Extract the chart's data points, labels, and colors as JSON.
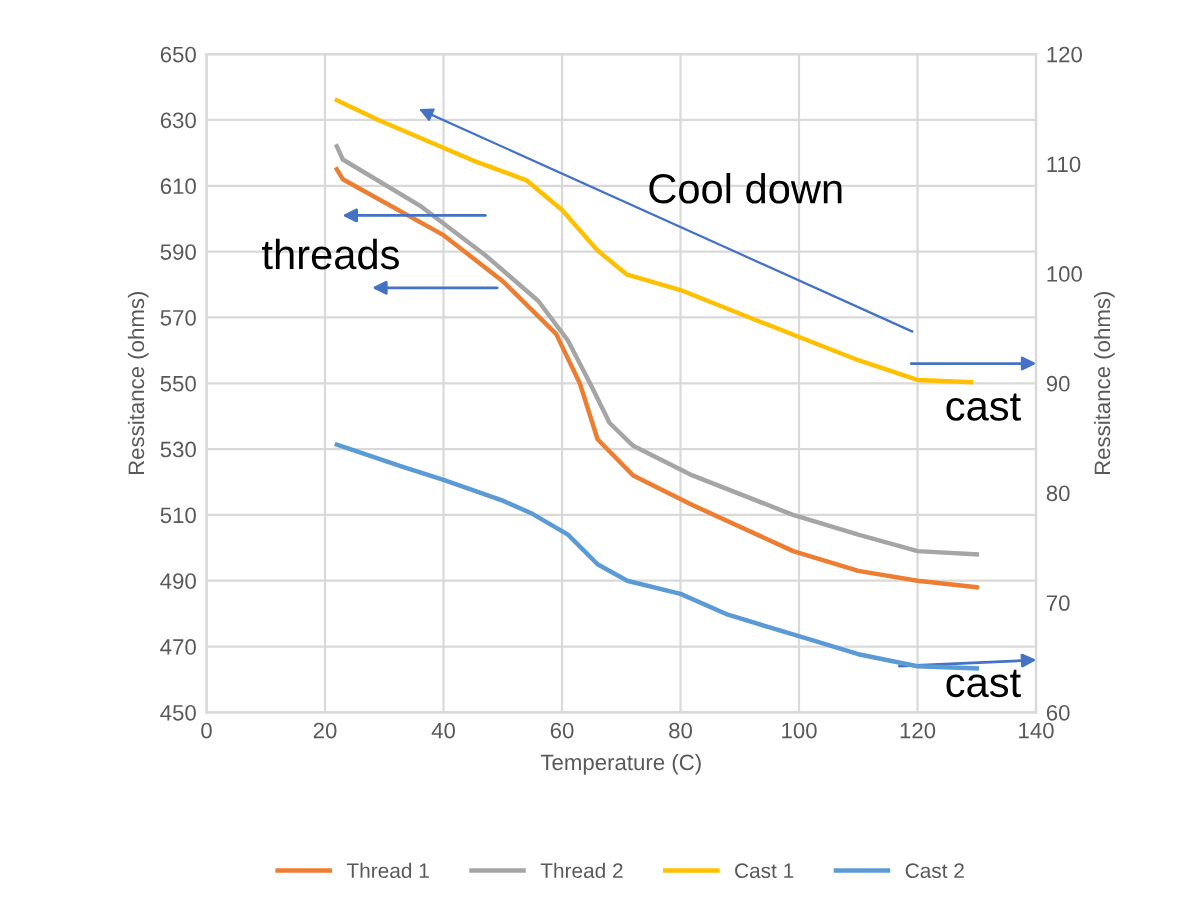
{
  "chart_data": {
    "type": "line",
    "xlabel": "Temperature (C)",
    "ylabel": "Ressitance (ohms)",
    "y2label": "Ressitance (ohms)",
    "xlim": [
      0,
      140
    ],
    "xticks": [
      0,
      20,
      40,
      60,
      80,
      100,
      120,
      140
    ],
    "ylim": [
      450,
      650
    ],
    "yticks": [
      450,
      470,
      490,
      510,
      530,
      550,
      570,
      590,
      610,
      630,
      650
    ],
    "y2lim": [
      60,
      120
    ],
    "y2ticks": [
      60,
      70,
      80,
      90,
      100,
      110,
      120
    ],
    "grid": true,
    "legend": "bottom",
    "marker": "none",
    "line_style": "solid",
    "series": [
      {
        "name": "Thread 1",
        "color": "#ed7d31",
        "x": [
          22,
          23,
          40,
          50,
          59,
          63,
          66,
          72,
          82,
          99,
          110,
          120,
          130
        ],
        "values": [
          615,
          612,
          595,
          581,
          565,
          550,
          533,
          522,
          513,
          499,
          493,
          490,
          488
        ]
      },
      {
        "name": "Thread 2",
        "color": "#a5a5a5",
        "x": [
          22,
          23,
          36,
          47,
          56,
          61,
          65,
          68,
          72,
          82,
          99,
          110,
          120,
          130
        ],
        "values": [
          622,
          618,
          604,
          589,
          575,
          563,
          549,
          538,
          531,
          522,
          510,
          504,
          499,
          498
        ]
      },
      {
        "name": "Cast 1",
        "color": "#ffc000",
        "axis": "y2",
        "x": [
          22,
          29,
          45,
          54,
          60,
          66,
          71,
          80,
          93,
          110,
          120,
          129
        ],
        "values": [
          115.8,
          114,
          110.3,
          108.5,
          105.8,
          102.1,
          99.9,
          98.5,
          95.7,
          92.1,
          90.3,
          90.1
        ]
      },
      {
        "name": "Cast 2",
        "color": "#5b9bd5",
        "axis": "y2",
        "x": [
          22,
          33,
          40,
          50,
          55,
          61,
          66,
          71,
          80,
          88,
          99,
          110,
          120,
          130
        ],
        "values": [
          84.4,
          82.4,
          81.2,
          79.3,
          78.1,
          76.2,
          73.5,
          72,
          70.8,
          68.9,
          67.1,
          65.3,
          64.2,
          64
        ]
      }
    ],
    "annotations": [
      "Cool down",
      "threads",
      "cast",
      "cast"
    ]
  }
}
